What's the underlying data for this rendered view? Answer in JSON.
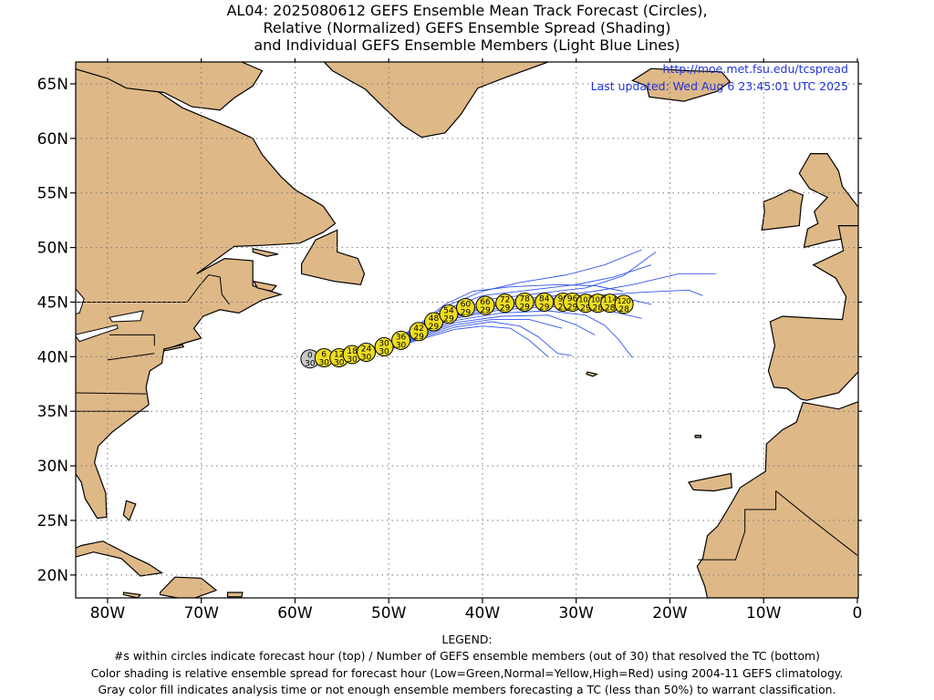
{
  "title": {
    "line1": "AL04: 2025080612 GEFS Ensemble Mean Track Forecast (Circles),",
    "line2": "Relative (Normalized) GEFS Ensemble Spread (Shading)",
    "line3": "and Individual GEFS Ensemble Members (Light Blue Lines)"
  },
  "credit": {
    "url": "http://moe.met.fsu.edu/tcspread",
    "updated": "Last updated: Wed Aug 6 23:45:01 UTC 2025"
  },
  "axes": {
    "lat_labels": [
      "65N",
      "60N",
      "55N",
      "50N",
      "45N",
      "40N",
      "35N",
      "30N",
      "25N",
      "20N"
    ],
    "lon_labels": [
      "80W",
      "70W",
      "60W",
      "50W",
      "40W",
      "30W",
      "20W",
      "10W",
      "0"
    ],
    "lon_range": [
      -83.4,
      0.1
    ],
    "lat_range": [
      17.9,
      67
    ]
  },
  "colors": {
    "land": "#deb887",
    "ocean": "#ffffff",
    "member_tracks": "#3355ee",
    "circle_normal": "#eedd22",
    "circle_analysis": "#c8c8c8",
    "credit_text": "#2233dd"
  },
  "legend": {
    "heading": "LEGEND:",
    "line1": "#s within circles indicate forecast hour (top) / Number of GEFS ensemble members (out of 30) that resolved the TC (bottom)",
    "line2": "Color shading is relative ensemble spread for forecast hour (Low=Green,Normal=Yellow,High=Red) using 2004-11 GEFS climatology.",
    "line3": "Gray color fill indicates analysis time or not enough ensemble members forecasting a TC (less than 50%) to warrant classification."
  },
  "track_points": [
    {
      "hour": "0",
      "members": "30",
      "lon": -58.4,
      "lat": 39.8,
      "spread": "analysis"
    },
    {
      "hour": "6",
      "members": "30",
      "lon": -56.9,
      "lat": 39.9,
      "spread": "normal"
    },
    {
      "hour": "12",
      "members": "30",
      "lon": -55.3,
      "lat": 39.9,
      "spread": "normal"
    },
    {
      "hour": "18",
      "members": "30",
      "lon": -53.9,
      "lat": 40.2,
      "spread": "normal"
    },
    {
      "hour": "24",
      "members": "30",
      "lon": -52.4,
      "lat": 40.4,
      "spread": "normal"
    },
    {
      "hour": "30",
      "members": "30",
      "lon": -50.5,
      "lat": 40.9,
      "spread": "normal"
    },
    {
      "hour": "36",
      "members": "30",
      "lon": -48.7,
      "lat": 41.5,
      "spread": "normal"
    },
    {
      "hour": "42",
      "members": "29",
      "lon": -46.8,
      "lat": 42.3,
      "spread": "normal"
    },
    {
      "hour": "48",
      "members": "29",
      "lon": -45.2,
      "lat": 43.2,
      "spread": "normal"
    },
    {
      "hour": "54",
      "members": "29",
      "lon": -43.6,
      "lat": 43.9,
      "spread": "normal"
    },
    {
      "hour": "60",
      "members": "29",
      "lon": -41.8,
      "lat": 44.5,
      "spread": "normal"
    },
    {
      "hour": "66",
      "members": "29",
      "lon": -39.7,
      "lat": 44.7,
      "spread": "normal"
    },
    {
      "hour": "72",
      "members": "29",
      "lon": -37.6,
      "lat": 44.9,
      "spread": "normal"
    },
    {
      "hour": "78",
      "members": "29",
      "lon": -35.5,
      "lat": 45.0,
      "spread": "normal"
    },
    {
      "hour": "84",
      "members": "29",
      "lon": -33.4,
      "lat": 45.0,
      "spread": "normal"
    },
    {
      "hour": "90",
      "members": "29",
      "lon": -31.4,
      "lat": 45.0,
      "spread": "normal"
    },
    {
      "hour": "96",
      "members": "29",
      "lon": -30.4,
      "lat": 45.0,
      "spread": "normal"
    },
    {
      "hour": "102",
      "members": "29",
      "lon": -29.0,
      "lat": 44.9,
      "spread": "normal"
    },
    {
      "hour": "108",
      "members": "28",
      "lon": -27.7,
      "lat": 44.9,
      "spread": "normal"
    },
    {
      "hour": "114",
      "members": "28",
      "lon": -26.4,
      "lat": 44.9,
      "spread": "normal"
    },
    {
      "hour": "120",
      "members": "28",
      "lon": -24.9,
      "lat": 44.8,
      "spread": "normal"
    }
  ],
  "member_tracks": [
    [
      [
        -51,
        40.6
      ],
      [
        -47,
        42.6
      ],
      [
        -44,
        44.3
      ],
      [
        -40,
        45.6
      ],
      [
        -35,
        46.1
      ],
      [
        -30,
        46.6
      ],
      [
        -26,
        47.3
      ],
      [
        -22,
        48.4
      ]
    ],
    [
      [
        -51,
        40.6
      ],
      [
        -47,
        42.5
      ],
      [
        -43,
        44.2
      ],
      [
        -39,
        45.3
      ],
      [
        -34,
        45.8
      ],
      [
        -29,
        46.3
      ],
      [
        -25,
        47.4
      ],
      [
        -21.5,
        49.6
      ]
    ],
    [
      [
        -51,
        40.6
      ],
      [
        -47,
        42.4
      ],
      [
        -43,
        44.0
      ],
      [
        -38,
        45.1
      ],
      [
        -33,
        45.5
      ],
      [
        -28,
        46.0
      ],
      [
        -24,
        46.6
      ],
      [
        -19,
        47.6
      ],
      [
        -15.1,
        47.6
      ]
    ],
    [
      [
        -51,
        40.6
      ],
      [
        -47,
        42.3
      ],
      [
        -43,
        43.9
      ],
      [
        -38,
        44.9
      ],
      [
        -33,
        45.3
      ],
      [
        -28,
        45.6
      ],
      [
        -23,
        45.9
      ],
      [
        -18,
        46.1
      ],
      [
        -16.5,
        45.6
      ]
    ],
    [
      [
        -51,
        40.6
      ],
      [
        -47,
        42.2
      ],
      [
        -43,
        43.8
      ],
      [
        -38,
        44.7
      ],
      [
        -33,
        45.1
      ],
      [
        -28,
        45.3
      ],
      [
        -24,
        45.2
      ],
      [
        -22,
        44.8
      ]
    ],
    [
      [
        -51,
        40.5
      ],
      [
        -47,
        42.1
      ],
      [
        -43,
        43.6
      ],
      [
        -38,
        44.5
      ],
      [
        -33,
        44.8
      ],
      [
        -28,
        44.9
      ],
      [
        -24,
        44.8
      ]
    ],
    [
      [
        -51,
        40.5
      ],
      [
        -47,
        42.0
      ],
      [
        -43,
        43.5
      ],
      [
        -38,
        44.3
      ],
      [
        -33,
        44.6
      ],
      [
        -28,
        44.5
      ],
      [
        -25,
        43.9
      ],
      [
        -23,
        43.5
      ]
    ],
    [
      [
        -51,
        40.5
      ],
      [
        -47,
        41.9
      ],
      [
        -43,
        43.3
      ],
      [
        -38,
        44.0
      ],
      [
        -33,
        44.2
      ],
      [
        -29,
        43.8
      ],
      [
        -27,
        42.9
      ],
      [
        -25.5,
        41.6
      ],
      [
        -24,
        39.9
      ]
    ],
    [
      [
        -51,
        40.4
      ],
      [
        -47,
        41.8
      ],
      [
        -43,
        43.1
      ],
      [
        -38,
        43.7
      ],
      [
        -33,
        43.8
      ],
      [
        -30,
        42.9
      ],
      [
        -28,
        42.0
      ]
    ],
    [
      [
        -51,
        40.4
      ],
      [
        -47,
        41.7
      ],
      [
        -43,
        42.9
      ],
      [
        -39,
        43.4
      ],
      [
        -35,
        43.4
      ],
      [
        -31.5,
        42.6
      ]
    ],
    [
      [
        -51,
        40.4
      ],
      [
        -47,
        41.6
      ],
      [
        -43,
        42.7
      ],
      [
        -39,
        43.2
      ],
      [
        -36,
        42.8
      ],
      [
        -34,
        41.8
      ],
      [
        -32,
        40.3
      ],
      [
        -30.5,
        40.1
      ]
    ],
    [
      [
        -51,
        40.3
      ],
      [
        -47,
        41.5
      ],
      [
        -43,
        42.5
      ],
      [
        -40,
        42.8
      ],
      [
        -37,
        42.6
      ],
      [
        -35,
        41.5
      ],
      [
        -33,
        40.0
      ]
    ],
    [
      [
        -51,
        40.6
      ],
      [
        -47,
        42.7
      ],
      [
        -44,
        44.6
      ],
      [
        -40,
        46.0
      ],
      [
        -36,
        46.8
      ],
      [
        -31,
        47.5
      ],
      [
        -27,
        48.4
      ],
      [
        -23,
        49.8
      ]
    ],
    [
      [
        -51,
        40.6
      ],
      [
        -47,
        42.8
      ],
      [
        -44,
        44.8
      ],
      [
        -41,
        46.0
      ],
      [
        -37,
        46.4
      ],
      [
        -32,
        46.6
      ],
      [
        -28,
        46.5
      ],
      [
        -25,
        46.0
      ]
    ],
    [
      [
        -51,
        40.5
      ],
      [
        -47,
        42.2
      ],
      [
        -43,
        43.7
      ],
      [
        -39,
        44.6
      ],
      [
        -35,
        45.0
      ],
      [
        -31,
        44.9
      ],
      [
        -27,
        44.6
      ],
      [
        -24,
        44.4
      ]
    ]
  ]
}
